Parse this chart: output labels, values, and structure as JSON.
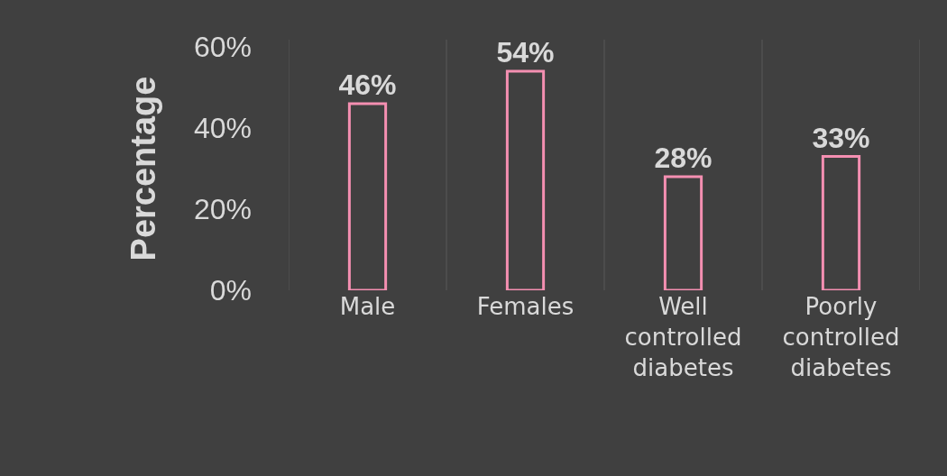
{
  "chart_data": {
    "type": "bar",
    "ylabel": "Percentage",
    "categories": [
      "Male",
      "Females",
      "Well controlled diabetes",
      "Poorly controlled diabetes"
    ],
    "values": [
      46,
      54,
      28,
      33
    ],
    "color": "#f48fb1",
    "value_labels": [
      "46%",
      "54%",
      "28%",
      "33%"
    ],
    "ylim": [
      0,
      60
    ],
    "yticks": [
      {
        "value": 0,
        "label": "0%"
      },
      {
        "value": 20,
        "label": "20%"
      },
      {
        "value": 40,
        "label": "40%"
      },
      {
        "value": 60,
        "label": "60%"
      }
    ],
    "grid": "x"
  }
}
